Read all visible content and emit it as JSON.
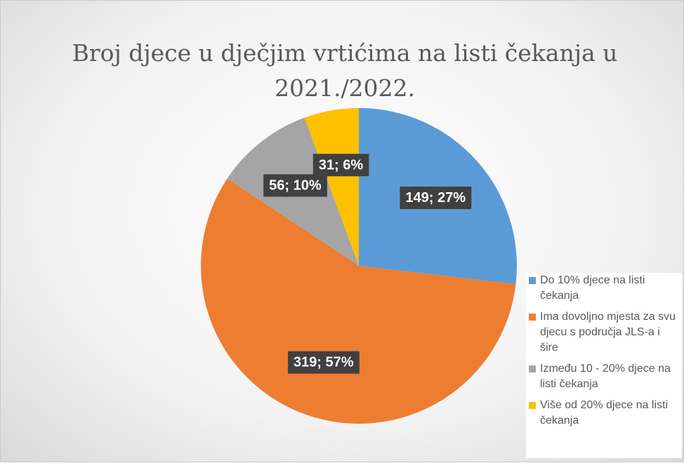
{
  "chart_data": {
    "type": "pie",
    "title": "Broj djece u dječjim vrtićima na listi čekanja u 2021./2022.",
    "categories": [
      "Do 10% djece na listi čekanja",
      "Ima dovoljno mjesta za svu djecu s područja JLS-a i šire",
      "Između 10 - 20% djece na listi čekanja",
      "Više od 20% djece na listi čekanja"
    ],
    "values": [
      149,
      319,
      56,
      31
    ],
    "value_labels": [
      "149; 27%",
      "319; 57%",
      "56; 10%",
      "31; 6%"
    ],
    "colors": [
      "#5b9bd5",
      "#ed7d31",
      "#a5a5a5",
      "#ffc000"
    ],
    "legend": "right"
  }
}
